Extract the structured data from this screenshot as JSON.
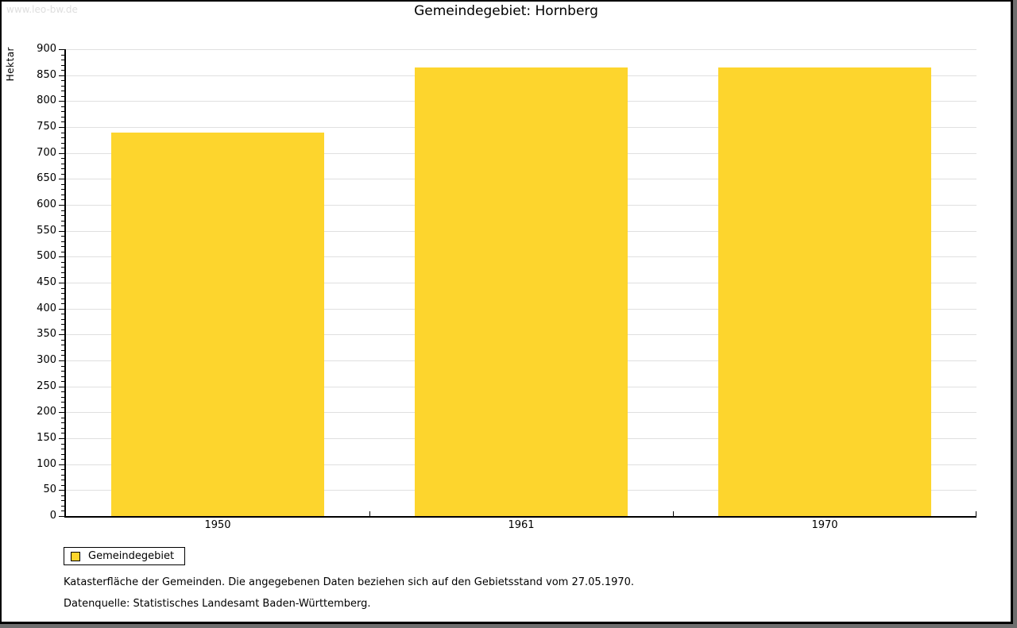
{
  "watermark": "www.leo-bw.de",
  "title": "Gemeindegebiet: Hornberg",
  "legend": {
    "label": "Gemeindegebiet",
    "swatch_color": "#FDD52D"
  },
  "notes": [
    "Katasterfläche der Gemeinden. Die angegebenen Daten beziehen sich auf den Gebietsstand vom 27.05.1970.",
    "Datenquelle: Statistisches Landesamt Baden-Württemberg."
  ],
  "colors": {
    "bar": "#FDD52D",
    "gridline": "#E0E0E0",
    "axis": "#000000",
    "watermark_text": "#DEDEDE",
    "frame_shadow": "#6E6E6E"
  },
  "chart_data": {
    "type": "bar",
    "title": "Gemeindegebiet: Hornberg",
    "categories": [
      "1950",
      "1961",
      "1970"
    ],
    "series": [
      {
        "name": "Gemeindegebiet",
        "values": [
          740,
          865,
          865
        ]
      }
    ],
    "xlabel": "",
    "ylabel": "Hektar",
    "ylim": [
      0,
      900
    ],
    "ytick_step": 50,
    "ytick_labels": [
      "0",
      "50",
      "100",
      "150",
      "200",
      "250",
      "300",
      "350",
      "400",
      "450",
      "500",
      "550",
      "600",
      "650",
      "700",
      "750",
      "800",
      "850",
      "900"
    ],
    "minor_tick_step": 10,
    "grid": true,
    "legend_position": "bottom-left",
    "bar_color": "#FDD52D",
    "unit": "Hektar"
  }
}
